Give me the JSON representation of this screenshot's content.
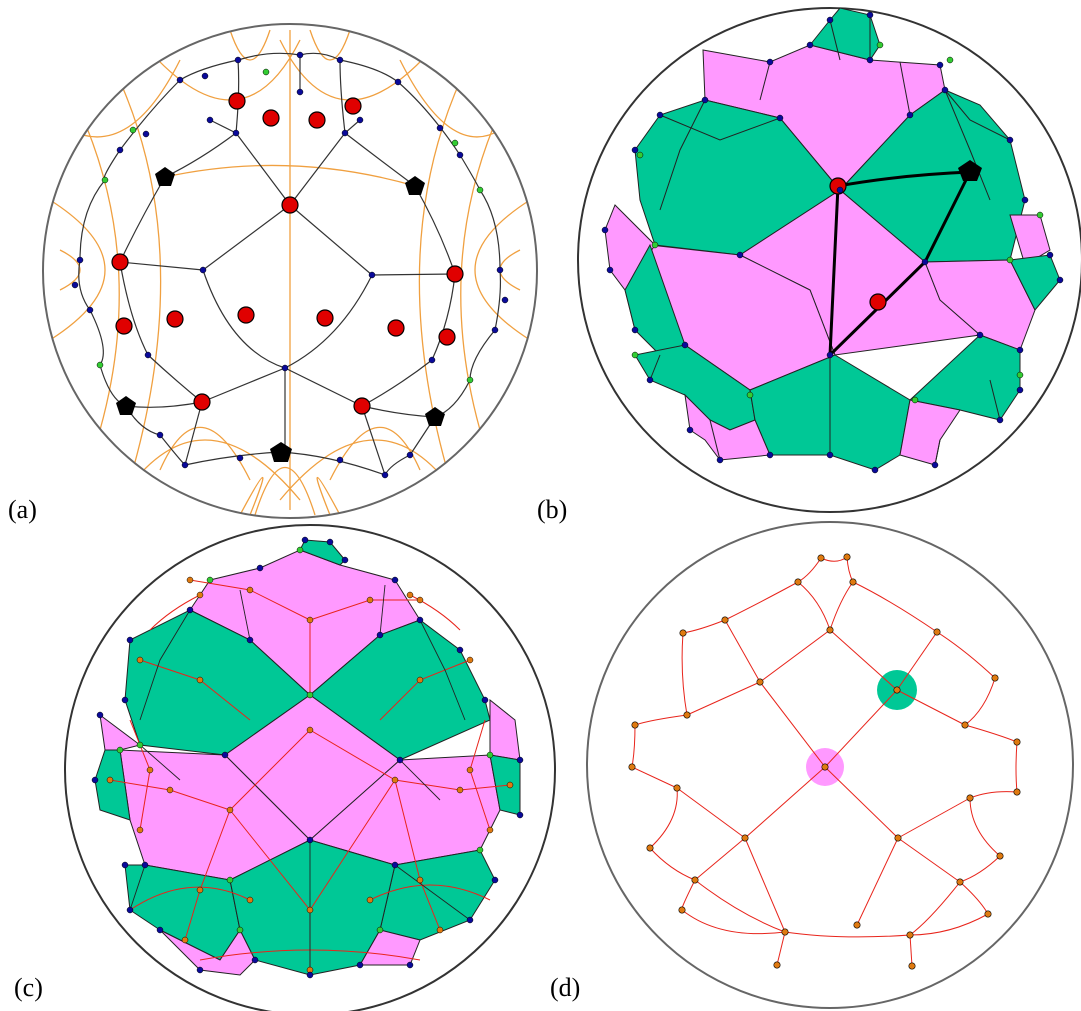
{
  "panels": [
    {
      "id": "a",
      "label": "(a)"
    },
    {
      "id": "b",
      "label": "(b)"
    },
    {
      "id": "c",
      "label": "(c)"
    },
    {
      "id": "d",
      "label": "(d)"
    }
  ],
  "colors": {
    "green_region": "#00c896",
    "pink_region": "#ff99ff",
    "edge": "#222222",
    "dual_edge": "#e8241b",
    "orange_geodesic": "#f0a040",
    "red_vertex": "#e00000",
    "blue_vertex": "#0a0a9a",
    "green_vertex": "#33cc33",
    "orange_vertex": "#e07a10",
    "black_marker": "#000000",
    "boundary_circle": "#666666"
  }
}
